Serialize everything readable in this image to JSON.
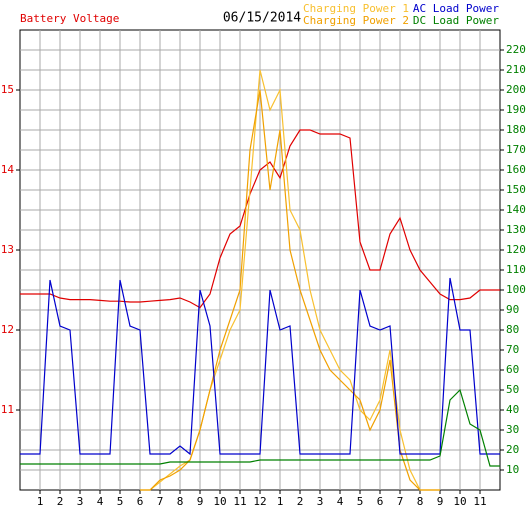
{
  "chart_data": {
    "type": "line",
    "title": "06/15/2014",
    "x": [
      0,
      0.5,
      1,
      1.5,
      2,
      2.5,
      3,
      3.5,
      4,
      4.5,
      5,
      5.5,
      6,
      6.5,
      7,
      7.5,
      8,
      8.5,
      9,
      9.5,
      10,
      10.5,
      11,
      11.5,
      12,
      12.5,
      13,
      13.5,
      14,
      14.5,
      15,
      15.5,
      16,
      16.5,
      17,
      17.5,
      18,
      18.5,
      19,
      19.5,
      20,
      20.5,
      21,
      21.5,
      22,
      22.5,
      23,
      23.5,
      24
    ],
    "xlim": [
      0,
      24
    ],
    "xticks": [
      1,
      2,
      3,
      4,
      5,
      6,
      7,
      8,
      9,
      10,
      11,
      12,
      {
        "value": 13,
        "label": "1"
      },
      {
        "value": 14,
        "label": "2"
      },
      {
        "value": 15,
        "label": "3"
      },
      {
        "value": 16,
        "label": "4"
      },
      {
        "value": 17,
        "label": "5"
      },
      {
        "value": 18,
        "label": "6"
      },
      {
        "value": 19,
        "label": "7"
      },
      {
        "value": 20,
        "label": "8"
      },
      {
        "value": 21,
        "label": "9"
      },
      {
        "value": 22,
        "label": "10"
      },
      {
        "value": 23,
        "label": "11"
      }
    ],
    "ylim": [
      10,
      15.75
    ],
    "yticks": [
      11,
      12,
      13,
      14,
      15
    ],
    "y2lim": [
      0,
      230
    ],
    "y2ticks": [
      10,
      20,
      30,
      40,
      50,
      60,
      70,
      80,
      90,
      100,
      110,
      120,
      130,
      140,
      150,
      160,
      170,
      180,
      190,
      200,
      210,
      220
    ],
    "grid": true,
    "series": [
      {
        "name": "Battery Voltage",
        "color": "#e00000",
        "axis": "y",
        "values": [
          12.45,
          12.45,
          12.45,
          12.45,
          12.4,
          12.38,
          12.38,
          12.38,
          12.37,
          12.36,
          12.36,
          12.35,
          12.35,
          12.36,
          12.37,
          12.38,
          12.4,
          12.35,
          12.28,
          12.45,
          12.9,
          13.2,
          13.3,
          13.7,
          14.0,
          14.1,
          13.9,
          14.3,
          14.5,
          14.5,
          14.45,
          14.45,
          14.45,
          14.4,
          13.1,
          12.75,
          12.75,
          13.2,
          13.4,
          13.0,
          12.75,
          12.6,
          12.45,
          12.38,
          12.38,
          12.4,
          12.5,
          12.5,
          12.5
        ]
      },
      {
        "name": "Charging Power 1",
        "color": "#f8c030",
        "axis": "y2",
        "values": [
          null,
          null,
          null,
          null,
          null,
          null,
          null,
          null,
          null,
          null,
          null,
          null,
          0,
          0,
          4,
          8,
          12,
          15,
          30,
          50,
          65,
          80,
          90,
          150,
          210,
          190,
          200,
          140,
          130,
          100,
          80,
          70,
          60,
          55,
          40,
          35,
          45,
          70,
          30,
          10,
          0,
          0,
          0,
          null,
          null,
          null,
          null,
          null,
          null
        ]
      },
      {
        "name": "Charging Power 2",
        "color": "#f0a000",
        "axis": "y2",
        "values": [
          null,
          null,
          null,
          null,
          null,
          null,
          null,
          null,
          null,
          null,
          null,
          null,
          0,
          0,
          5,
          7,
          10,
          15,
          30,
          50,
          70,
          85,
          100,
          170,
          200,
          150,
          180,
          120,
          100,
          85,
          70,
          60,
          55,
          50,
          45,
          30,
          40,
          65,
          20,
          5,
          0,
          0,
          0,
          null,
          null,
          null,
          null,
          null,
          null
        ]
      },
      {
        "name": "AC Load Power",
        "color": "#0000cc",
        "axis": "y2",
        "values": [
          18,
          18,
          18,
          105,
          82,
          80,
          18,
          18,
          18,
          18,
          105,
          82,
          80,
          18,
          18,
          18,
          22,
          18,
          100,
          82,
          18,
          18,
          18,
          18,
          18,
          100,
          80,
          82,
          18,
          18,
          18,
          18,
          18,
          18,
          100,
          82,
          80,
          82,
          18,
          18,
          18,
          18,
          18,
          106,
          80,
          80,
          18,
          18,
          18
        ]
      },
      {
        "name": "DC Load Power",
        "color": "#008000",
        "axis": "y2",
        "values": [
          13,
          13,
          13,
          13,
          13,
          13,
          13,
          13,
          13,
          13,
          13,
          13,
          13,
          13,
          13,
          14,
          14,
          14,
          14,
          14,
          14,
          14,
          14,
          14,
          15,
          15,
          15,
          15,
          15,
          15,
          15,
          15,
          15,
          15,
          15,
          15,
          15,
          15,
          15,
          15,
          15,
          15,
          17,
          45,
          50,
          33,
          30,
          12,
          12
        ]
      }
    ]
  }
}
